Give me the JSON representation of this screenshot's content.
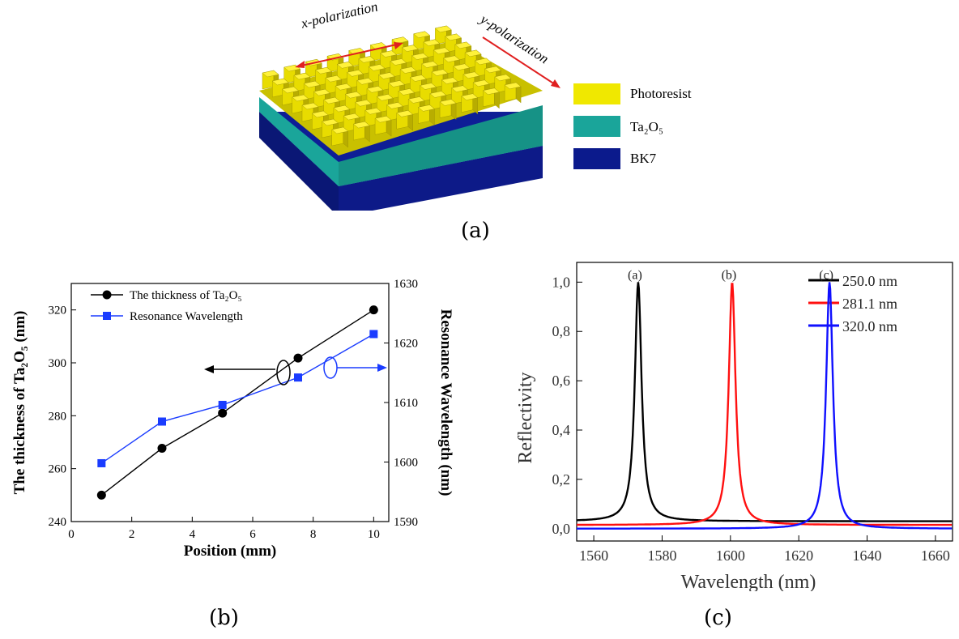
{
  "figure_a": {
    "x_pol_label": "x-polarization",
    "y_pol_label": "y-polarization",
    "legend": [
      {
        "label": "Photoresist",
        "color": "#f0e800"
      },
      {
        "label": "Ta₂O₅",
        "color": "#1aa59a"
      },
      {
        "label": "BK7",
        "color": "#0b1a8c"
      }
    ],
    "caption": "(a)"
  },
  "figure_b": {
    "caption": "(b)"
  },
  "figure_c": {
    "caption": "(c)"
  },
  "chart_data": [
    {
      "type": "line",
      "xlabel": "Position (mm)",
      "ylabel": "The thickness of Ta₂O₅ (nm)",
      "y2label": "Resonance Wavelength (nm)",
      "xlim": [
        0,
        10.5
      ],
      "ylim": [
        240,
        330
      ],
      "y2lim": [
        1590,
        1630
      ],
      "xticks": [
        0,
        2,
        4,
        6,
        8,
        10
      ],
      "yticks": [
        240,
        260,
        280,
        300,
        320
      ],
      "y2ticks": [
        1590,
        1600,
        1610,
        1620,
        1630
      ],
      "legend_position": "top-left",
      "series": [
        {
          "name": "The thickness of Ta₂O₅",
          "axis": "left",
          "color": "#000000",
          "marker": "circle",
          "x": [
            1,
            3,
            5,
            7.5,
            10
          ],
          "y": [
            250,
            267.7,
            281,
            301.8,
            320
          ]
        },
        {
          "name": "Resonance Wavelength",
          "axis": "right",
          "color": "#1a3cff",
          "marker": "square",
          "x": [
            1,
            3,
            5,
            7.5,
            10
          ],
          "y": [
            1599.8,
            1606.8,
            1609.6,
            1614.2,
            1621.5
          ]
        }
      ]
    },
    {
      "type": "line",
      "xlabel": "Wavelength (nm)",
      "ylabel": "Reflectivity",
      "xlim": [
        1555,
        1665
      ],
      "ylim": [
        -0.05,
        1.08
      ],
      "xticks": [
        1560,
        1580,
        1600,
        1620,
        1640,
        1660
      ],
      "yticks": [
        0.0,
        0.2,
        0.4,
        0.6,
        0.8,
        1.0
      ],
      "ytick_labels": [
        "0,0",
        "0,2",
        "0,4",
        "0,6",
        "0,8",
        "1,0"
      ],
      "legend_position": "top-right",
      "peak_labels": [
        "(a)",
        "(b)",
        "(c)"
      ],
      "series": [
        {
          "name": "250.0 nm",
          "color": "#000000",
          "center": 1573,
          "baseline": 0.03
        },
        {
          "name": "281.1 nm",
          "color": "#ff1010",
          "center": 1600.5,
          "baseline": 0.015
        },
        {
          "name": "320.0 nm",
          "color": "#1010ff",
          "center": 1629,
          "baseline": 0.0
        }
      ]
    }
  ]
}
